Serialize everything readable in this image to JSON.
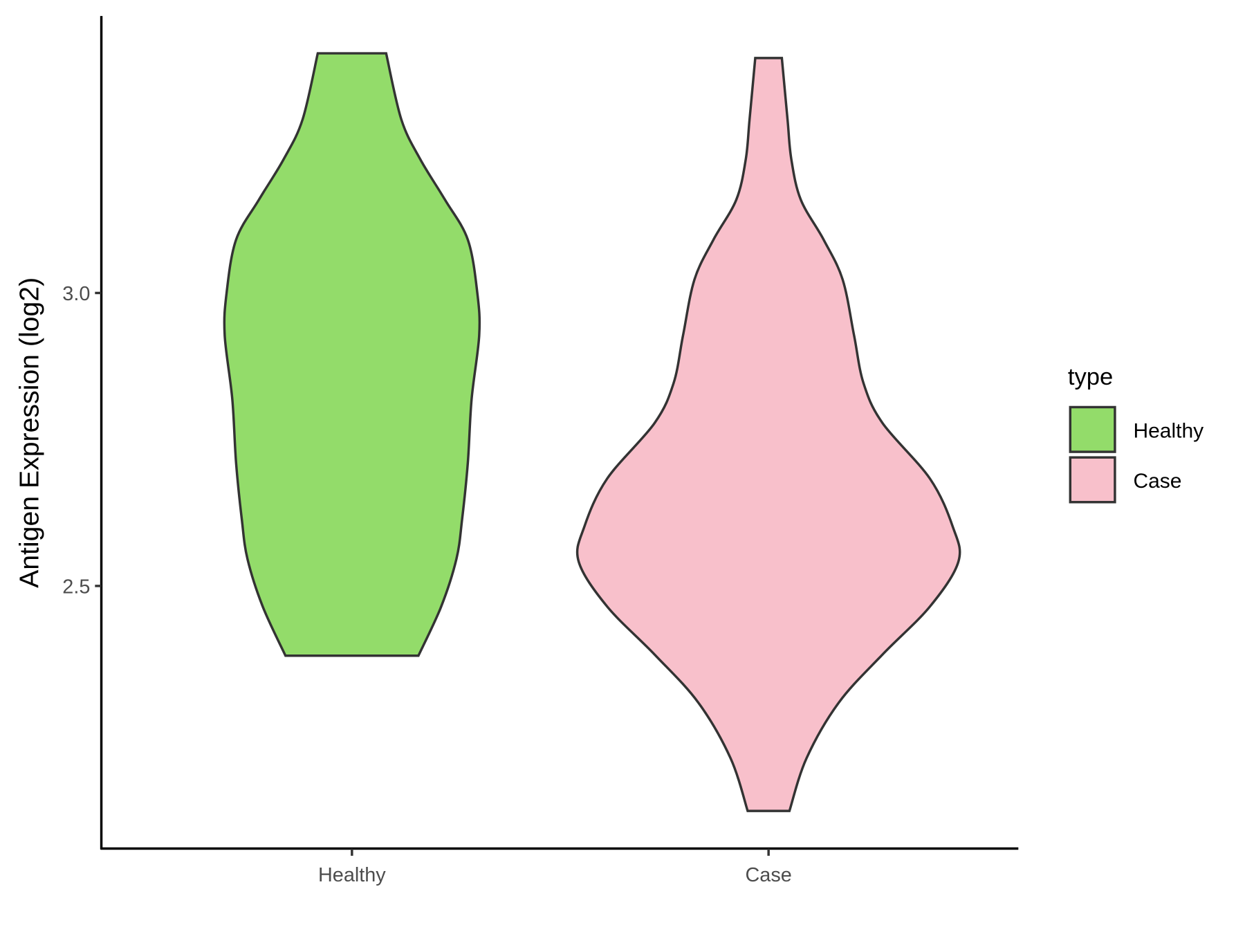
{
  "chart_data": {
    "type": "violin",
    "title": "",
    "xlabel": "",
    "ylabel": "Antigen Expression (log2)",
    "ylim": [
      2.052,
      3.473
    ],
    "yticks": [
      2.5,
      3.0
    ],
    "ytick_labels": [
      "2.5",
      "3.0"
    ],
    "categories": [
      "Healthy",
      "Case"
    ],
    "grid": false,
    "legend": {
      "title": "type",
      "position": "right",
      "entries": [
        "Healthy",
        "Case"
      ]
    },
    "series": [
      {
        "name": "Healthy",
        "color": "#93dc6a",
        "min": 2.381,
        "max": 3.409,
        "profile_y": [
          3.409,
          3.296,
          3.228,
          3.159,
          3.091,
          3.0,
          2.928,
          2.819,
          2.71,
          2.614,
          2.546,
          2.465,
          2.381
        ],
        "relative_density": [
          0.18,
          0.26,
          0.36,
          0.49,
          0.61,
          0.66,
          0.67,
          0.63,
          0.61,
          0.58,
          0.55,
          0.47,
          0.35
        ]
      },
      {
        "name": "Case",
        "color": "#f8c0cb",
        "min": 2.116,
        "max": 3.401,
        "profile_y": [
          3.401,
          3.296,
          3.228,
          3.159,
          3.091,
          3.023,
          2.928,
          2.846,
          2.778,
          2.683,
          2.601,
          2.542,
          2.465,
          2.383,
          2.301,
          2.206,
          2.116
        ],
        "relative_density": [
          0.07,
          0.1,
          0.12,
          0.17,
          0.29,
          0.39,
          0.45,
          0.5,
          0.6,
          0.85,
          0.97,
          1.0,
          0.85,
          0.6,
          0.37,
          0.2,
          0.11
        ]
      }
    ]
  }
}
